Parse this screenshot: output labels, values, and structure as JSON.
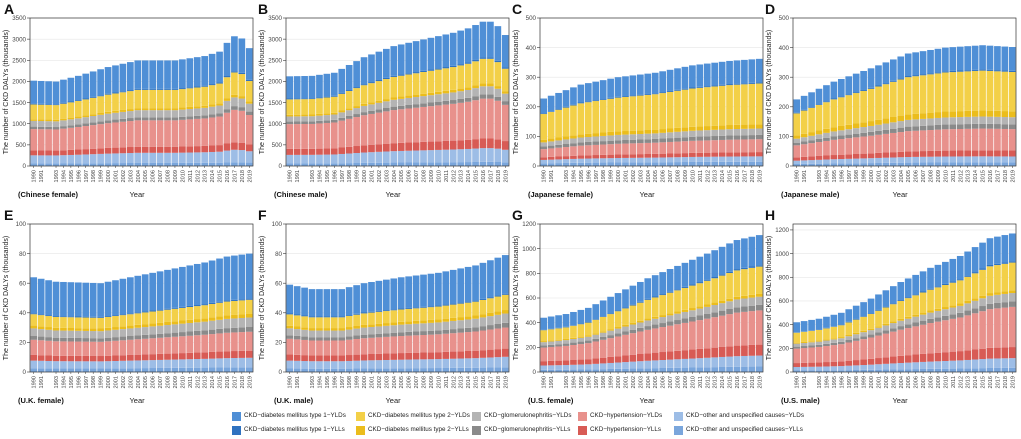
{
  "figure": {
    "xlabel": "Year",
    "ylabel": "The number of CKD DALYs (thousands)"
  },
  "years": [
    1990,
    1991,
    1992,
    1993,
    1994,
    1995,
    1996,
    1997,
    1998,
    1999,
    2000,
    2001,
    2002,
    2003,
    2004,
    2005,
    2006,
    2007,
    2008,
    2009,
    2010,
    2011,
    2012,
    2013,
    2014,
    2015,
    2016,
    2017,
    2018,
    2019
  ],
  "year_tick_labels": [
    "1990",
    "1991",
    "1993",
    "1994",
    "1995",
    "1996",
    "1997",
    "1998",
    "1999",
    "2000",
    "2001",
    "2002",
    "2003",
    "2004",
    "2005",
    "2006",
    "2007",
    "2008",
    "2009",
    "2010",
    "2011",
    "2012",
    "2013",
    "2014",
    "2015",
    "2016",
    "2017",
    "2018",
    "2019"
  ],
  "legend": {
    "items": [
      {
        "label": "CKD−diabetes mellitus type 1−YLDs",
        "color": "#4f8fd6"
      },
      {
        "label": "CKD−diabetes mellitus type 1−YLLs",
        "color": "#2f72c0"
      },
      {
        "label": "CKD−diabetes mellitus type 2−YLDs",
        "color": "#f3d048"
      },
      {
        "label": "CKD−diabetes mellitus type 2−YLLs",
        "color": "#ebbd1c"
      },
      {
        "label": "CKD−glomerulonephritis−YLDs",
        "color": "#b4b4b4"
      },
      {
        "label": "CKD−glomerulonephritis−YLLs",
        "color": "#8a8a8a"
      },
      {
        "label": "CKD−hypertension−YLDs",
        "color": "#e8918c"
      },
      {
        "label": "CKD−hypertension−YLLs",
        "color": "#d85b55"
      },
      {
        "label": "CKD−other and unspecified causes−YLDs",
        "color": "#9dbde6"
      },
      {
        "label": "CKD−other and unspecified causes−YLLs",
        "color": "#7aa6dc"
      }
    ]
  },
  "chart_data": [
    {
      "type": "bar",
      "stacked": true,
      "panel_letter": "A",
      "subtitle": "(Chinese female)",
      "ylim": [
        0,
        3500
      ],
      "yticks": [
        0,
        500,
        1000,
        1500,
        2000,
        2500,
        3000,
        3500
      ],
      "keys": [
        [
          1990,
          1940
        ],
        [
          1993,
          1920
        ],
        [
          1996,
          2050
        ],
        [
          2000,
          2250
        ],
        [
          2004,
          2400
        ],
        [
          2009,
          2400
        ],
        [
          2013,
          2500
        ],
        [
          2015,
          2600
        ],
        [
          2016,
          2800
        ],
        [
          2017,
          2950
        ],
        [
          2018,
          2900
        ],
        [
          2019,
          2680
        ]
      ],
      "fractions": [
        0.28,
        0.01,
        0.18,
        0.02,
        0.07,
        0.03,
        0.26,
        0.06,
        0.1,
        0.03
      ]
    },
    {
      "type": "bar",
      "stacked": true,
      "panel_letter": "B",
      "subtitle": "(Chinese male)",
      "ylim": [
        0,
        3500
      ],
      "yticks": [
        0,
        500,
        1000,
        1500,
        2000,
        2500,
        3000,
        3500
      ],
      "keys": [
        [
          1990,
          2020
        ],
        [
          1993,
          2030
        ],
        [
          1996,
          2100
        ],
        [
          2000,
          2450
        ],
        [
          2004,
          2700
        ],
        [
          2008,
          2850
        ],
        [
          2012,
          3000
        ],
        [
          2014,
          3100
        ],
        [
          2016,
          3250
        ],
        [
          2017,
          3250
        ],
        [
          2018,
          3150
        ],
        [
          2019,
          2950
        ]
      ],
      "fractions": [
        0.26,
        0.01,
        0.18,
        0.02,
        0.06,
        0.03,
        0.29,
        0.07,
        0.1,
        0.03
      ]
    },
    {
      "type": "bar",
      "stacked": true,
      "panel_letter": "C",
      "subtitle": "(Japanese female)",
      "ylim": [
        0,
        500
      ],
      "yticks": [
        0,
        100,
        200,
        300,
        400,
        500
      ],
      "keys": [
        [
          1990,
          228
        ],
        [
          1995,
          275
        ],
        [
          2000,
          300
        ],
        [
          2005,
          315
        ],
        [
          2010,
          340
        ],
        [
          2015,
          355
        ],
        [
          2019,
          362
        ]
      ],
      "fractions": [
        0.22,
        0.01,
        0.38,
        0.04,
        0.06,
        0.04,
        0.12,
        0.04,
        0.05,
        0.04
      ]
    },
    {
      "type": "bar",
      "stacked": true,
      "panel_letter": "D",
      "subtitle": "(Japanese male)",
      "ylim": [
        0,
        500
      ],
      "yticks": [
        0,
        100,
        200,
        300,
        400,
        500
      ],
      "keys": [
        [
          1990,
          225
        ],
        [
          1995,
          285
        ],
        [
          2000,
          330
        ],
        [
          2005,
          380
        ],
        [
          2010,
          400
        ],
        [
          2015,
          408
        ],
        [
          2019,
          402
        ]
      ],
      "fractions": [
        0.2,
        0.01,
        0.33,
        0.05,
        0.06,
        0.04,
        0.18,
        0.05,
        0.05,
        0.03
      ]
    },
    {
      "type": "bar",
      "stacked": true,
      "panel_letter": "E",
      "subtitle": "(U.K. female)",
      "ylim": [
        0,
        100
      ],
      "yticks": [
        0,
        20,
        40,
        60,
        80,
        100
      ],
      "keys": [
        [
          1990,
          64
        ],
        [
          1993,
          61
        ],
        [
          1999,
          60
        ],
        [
          2003,
          64
        ],
        [
          2008,
          69
        ],
        [
          2013,
          74
        ],
        [
          2016,
          78
        ],
        [
          2019,
          80
        ]
      ],
      "fractions": [
        0.38,
        0.01,
        0.12,
        0.03,
        0.08,
        0.04,
        0.16,
        0.06,
        0.08,
        0.04
      ]
    },
    {
      "type": "bar",
      "stacked": true,
      "panel_letter": "F",
      "subtitle": "(U.K. male)",
      "ylim": [
        0,
        100
      ],
      "yticks": [
        0,
        20,
        40,
        60,
        80,
        100
      ],
      "keys": [
        [
          1990,
          59
        ],
        [
          1993,
          56
        ],
        [
          1997,
          56
        ],
        [
          2000,
          60
        ],
        [
          2005,
          64
        ],
        [
          2010,
          67
        ],
        [
          2015,
          72
        ],
        [
          2019,
          79
        ]
      ],
      "fractions": [
        0.33,
        0.01,
        0.13,
        0.03,
        0.08,
        0.04,
        0.18,
        0.07,
        0.09,
        0.04
      ]
    },
    {
      "type": "bar",
      "stacked": true,
      "panel_letter": "G",
      "subtitle": "(U.S. female)",
      "ylim": [
        0,
        1200
      ],
      "yticks": [
        0,
        200,
        400,
        600,
        800,
        1000,
        1200
      ],
      "keys": [
        [
          1990,
          440
        ],
        [
          1993,
          470
        ],
        [
          1996,
          520
        ],
        [
          2000,
          640
        ],
        [
          2004,
          760
        ],
        [
          2008,
          860
        ],
        [
          2012,
          960
        ],
        [
          2016,
          1070
        ],
        [
          2019,
          1110
        ]
      ],
      "fractions": [
        0.22,
        0.01,
        0.2,
        0.02,
        0.06,
        0.04,
        0.25,
        0.08,
        0.08,
        0.04
      ]
    },
    {
      "type": "bar",
      "stacked": true,
      "panel_letter": "H",
      "subtitle": "(U.S. male)",
      "ylim": [
        0,
        1250
      ],
      "yticks": [
        0,
        200,
        400,
        600,
        800,
        1000,
        1200
      ],
      "keys": [
        [
          1990,
          420
        ],
        [
          1993,
          450
        ],
        [
          1996,
          500
        ],
        [
          2000,
          620
        ],
        [
          2004,
          760
        ],
        [
          2008,
          880
        ],
        [
          2012,
          980
        ],
        [
          2016,
          1130
        ],
        [
          2019,
          1170
        ]
      ],
      "fractions": [
        0.2,
        0.01,
        0.2,
        0.02,
        0.06,
        0.04,
        0.29,
        0.08,
        0.07,
        0.03
      ]
    }
  ]
}
